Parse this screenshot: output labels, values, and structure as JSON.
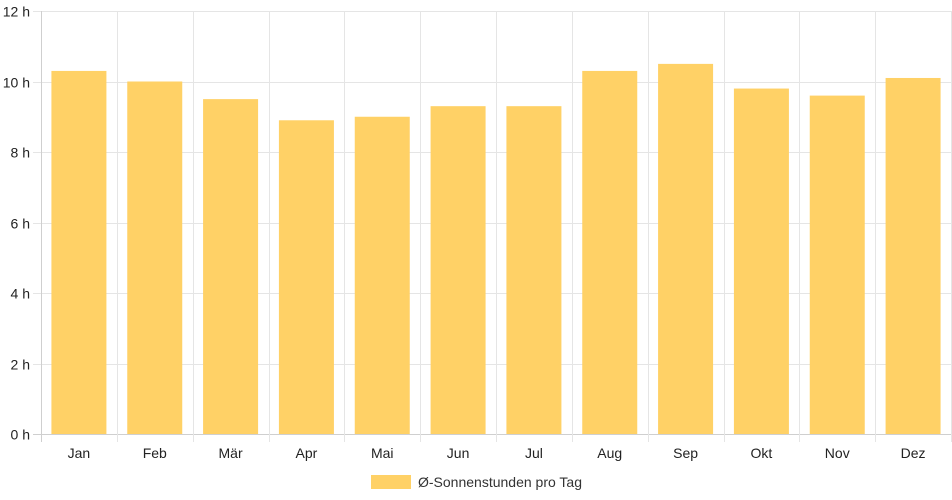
{
  "chart_data": {
    "type": "bar",
    "categories": [
      "Jan",
      "Feb",
      "Mär",
      "Apr",
      "Mai",
      "Jun",
      "Jul",
      "Aug",
      "Sep",
      "Okt",
      "Nov",
      "Dez"
    ],
    "series": [
      {
        "name": "Ø-Sonnenstunden pro Tag",
        "values": [
          10.3,
          10.0,
          9.5,
          8.9,
          9.0,
          9.3,
          9.3,
          10.3,
          10.5,
          9.8,
          9.6,
          10.1
        ],
        "color": "#ffd166"
      }
    ],
    "y_ticks": [
      "0 h",
      "2 h",
      "4 h",
      "6 h",
      "8 h",
      "10 h",
      "12 h"
    ],
    "ylim": [
      0,
      12
    ],
    "grid": true,
    "legend": "bottom-center"
  }
}
